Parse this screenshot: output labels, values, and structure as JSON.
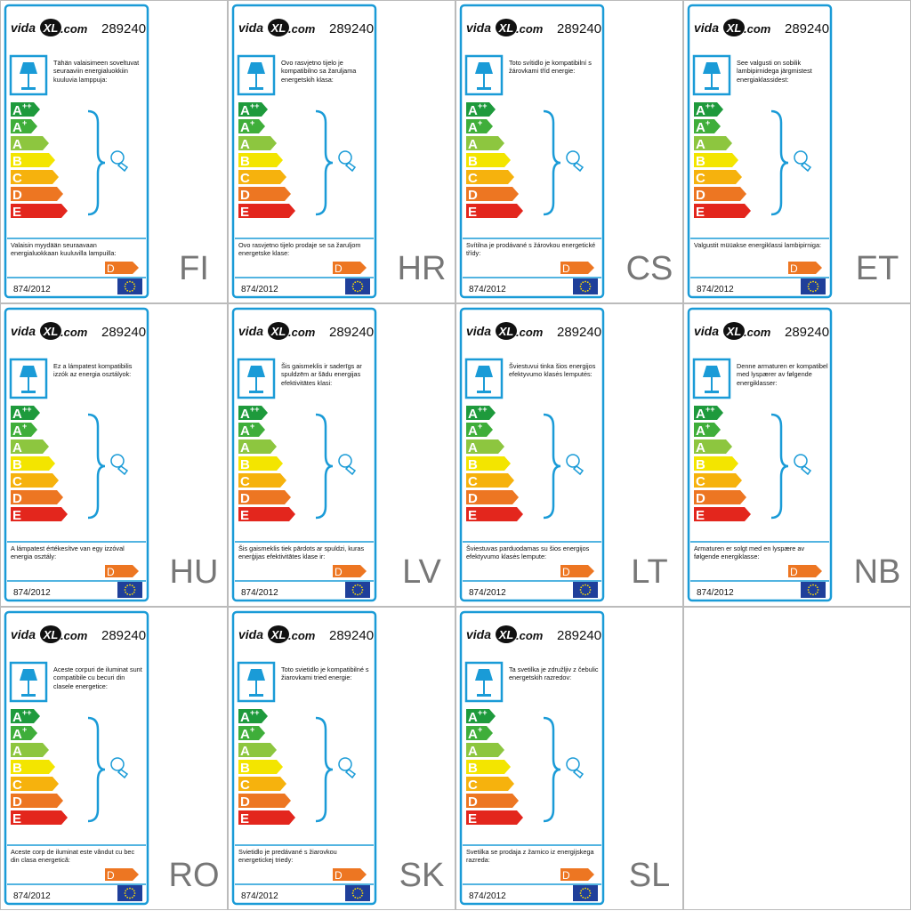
{
  "logo": {
    "left": "vida",
    "mark": "XL",
    "right": ".com"
  },
  "product_number": "289240",
  "energy_classes": [
    {
      "letter": "A",
      "sup": "++"
    },
    {
      "letter": "A",
      "sup": "+"
    },
    {
      "letter": "A"
    },
    {
      "letter": "B"
    },
    {
      "letter": "C"
    },
    {
      "letter": "D"
    },
    {
      "letter": "E"
    }
  ],
  "lamp_class": "D",
  "regulation": "874/2012",
  "labels": [
    {
      "lang": "FI",
      "top_text": "Tähän valaisimeen soveltuvat seuraaviin energialuokkiin kuuluvia lamppuja:",
      "bottom_text": "Valaisin myydään seuraavaan energialuokkaan kuuluvilla lampuilla:"
    },
    {
      "lang": "HR",
      "top_text": "Ovo rasvjetno tijelo je kompatibilno sa žaruljama energetskih klasa:",
      "bottom_text": "Ovo rasvjetno tijelo prodaje se sa žaruljom energetske klase:"
    },
    {
      "lang": "CS",
      "top_text": "Toto svítidlo je kompatibilní s žárovkami tříd energie:",
      "bottom_text": "Svítilna je prodávané s žárovkou energetické třídy:"
    },
    {
      "lang": "ET",
      "top_text": "See valgusti on sobilik lambipirnidega järgmistest energiaklassidest:",
      "bottom_text": "Valgustit müüakse energiklassi lambipirniga:"
    },
    {
      "lang": "HU",
      "top_text": "Ez a lámpatest kompatibilis izzók az energia osztályok:",
      "bottom_text": "A lámpatest értékesítve van egy izzóval energia osztály:"
    },
    {
      "lang": "LV",
      "top_text": "Šis gaismeklis ir saderīgs ar spuldzēm ar šādu energijas efektivitātes klasi:",
      "bottom_text": "Šis gaismeklis tiek pārdots ar spuldzi, kuras enerģijas efektivitātes klase ir:"
    },
    {
      "lang": "LT",
      "top_text": "Šviestuvui tinka šios energijos efektyvumo klasės lemputės:",
      "bottom_text": "Šviestuvas parduodamas su šios energijos efektyvumo klasės lempute:"
    },
    {
      "lang": "NB",
      "top_text": "Denne armaturen er kompatibel med lyspærer av følgende energiklasser:",
      "bottom_text": "Armaturen er solgt med en lyspære av følgende energiklasse:"
    },
    {
      "lang": "RO",
      "top_text": "Aceste corpuri de iluminat sunt compatibile cu becuri din clasele energetice:",
      "bottom_text": "Aceste corp de iluminat este vândut cu bec din clasa energetică:"
    },
    {
      "lang": "SK",
      "top_text": "Toto svietidlo je kompatibilné s žiarovkami tried energie:",
      "bottom_text": "Svietidlo je predávané s žiarovkou energetickej triedy:"
    },
    {
      "lang": "SL",
      "top_text": "Ta svetilka je združljiv z čebulic energetskih razredov:",
      "bottom_text": "Svetilka se prodaja z žarnico iz energijskega razreda:"
    }
  ]
}
